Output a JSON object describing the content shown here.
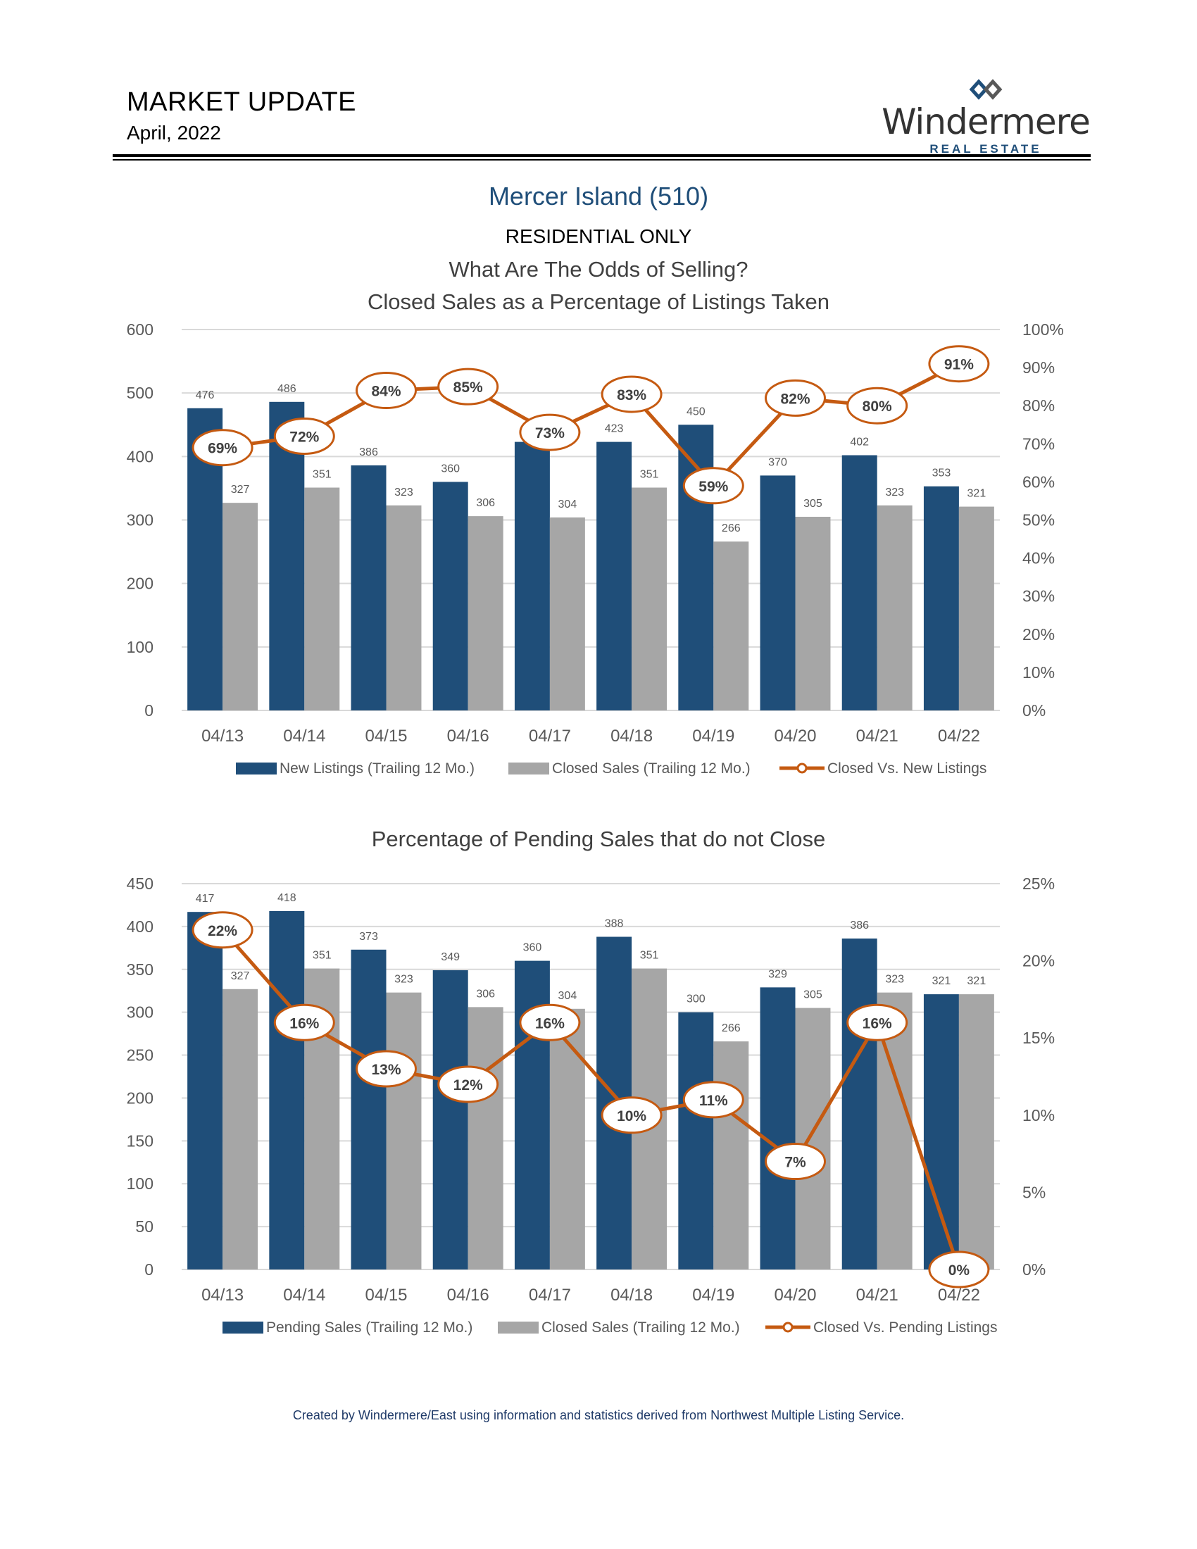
{
  "header": {
    "title": "MARKET UPDATE",
    "date": "April, 2022"
  },
  "logo": {
    "name": "Windermere",
    "sub": "REAL ESTATE"
  },
  "section": {
    "title": "Mercer Island (510)",
    "subtitle": "RESIDENTIAL ONLY"
  },
  "colors": {
    "navy": "#1f4e79",
    "gray": "#a6a6a6",
    "orange": "#c55a11",
    "grid": "#d9d9d9",
    "axis_text": "#595959"
  },
  "chart_data": [
    {
      "type": "bar",
      "title_lines": [
        "What Are The Odds of Selling?",
        "Closed Sales as a Percentage of Listings Taken"
      ],
      "categories": [
        "04/13",
        "04/14",
        "04/15",
        "04/16",
        "04/17",
        "04/18",
        "04/19",
        "04/20",
        "04/21",
        "04/22"
      ],
      "series": [
        {
          "name": "New Listings (Trailing 12 Mo.)",
          "kind": "bar",
          "color": "#1f4e79",
          "values": [
            476,
            486,
            386,
            360,
            423,
            423,
            450,
            370,
            402,
            353
          ]
        },
        {
          "name": "Closed Sales (Trailing 12 Mo.)",
          "kind": "bar",
          "color": "#a6a6a6",
          "values": [
            327,
            351,
            323,
            306,
            304,
            351,
            266,
            305,
            323,
            321
          ]
        },
        {
          "name": "Closed Vs. New Listings",
          "kind": "line",
          "axis": "right",
          "color": "#c55a11",
          "values": [
            69,
            72,
            84,
            85,
            73,
            83,
            59,
            82,
            80,
            91
          ]
        }
      ],
      "bar_value_labels": [
        [
          "476",
          "486",
          "386",
          "360",
          "",
          "423",
          "450",
          "370",
          "402",
          "353"
        ],
        [
          "327",
          "351",
          "323",
          "306",
          "304",
          "351",
          "266",
          "305",
          "323",
          "321"
        ]
      ],
      "line_labels": [
        "69%",
        "72%",
        "84%",
        "85%",
        "73%",
        "83%",
        "59%",
        "82%",
        "80%",
        "91%"
      ],
      "y_left": {
        "min": 0,
        "max": 600,
        "ticks": [
          "0",
          "100",
          "200",
          "300",
          "400",
          "500",
          "600"
        ]
      },
      "y_right": {
        "min": 0,
        "max": 100,
        "ticks": [
          "0%",
          "10%",
          "20%",
          "30%",
          "40%",
          "50%",
          "60%",
          "70%",
          "80%",
          "90%",
          "100%"
        ]
      },
      "legend_position": "bottom"
    },
    {
      "type": "bar",
      "title_lines": [
        "Percentage of Pending Sales that do not Close"
      ],
      "categories": [
        "04/13",
        "04/14",
        "04/15",
        "04/16",
        "04/17",
        "04/18",
        "04/19",
        "04/20",
        "04/21",
        "04/22"
      ],
      "series": [
        {
          "name": "Pending Sales (Trailing 12 Mo.)",
          "kind": "bar",
          "color": "#1f4e79",
          "values": [
            417,
            418,
            373,
            349,
            360,
            388,
            300,
            329,
            386,
            321
          ]
        },
        {
          "name": "Closed Sales (Trailing 12 Mo.)",
          "kind": "bar",
          "color": "#a6a6a6",
          "values": [
            327,
            351,
            323,
            306,
            304,
            351,
            266,
            305,
            323,
            321
          ]
        },
        {
          "name": "Closed Vs. Pending Listings",
          "kind": "line",
          "axis": "right",
          "color": "#c55a11",
          "values": [
            22,
            16,
            13,
            12,
            16,
            10,
            11,
            7,
            16,
            0
          ]
        }
      ],
      "bar_value_labels": [
        [
          "417",
          "418",
          "373",
          "349",
          "360",
          "388",
          "300",
          "329",
          "386",
          "321"
        ],
        [
          "327",
          "351",
          "323",
          "306",
          "304",
          "351",
          "266",
          "305",
          "323",
          "321"
        ]
      ],
      "line_labels": [
        "22%",
        "16%",
        "13%",
        "12%",
        "16%",
        "10%",
        "11%",
        "7%",
        "16%",
        "0%"
      ],
      "y_left": {
        "min": 0,
        "max": 450,
        "ticks": [
          "0",
          "50",
          "100",
          "150",
          "200",
          "250",
          "300",
          "350",
          "400",
          "450"
        ]
      },
      "y_right": {
        "min": 0,
        "max": 25,
        "ticks": [
          "0%",
          "5%",
          "10%",
          "15%",
          "20%",
          "25%"
        ]
      },
      "legend_position": "bottom"
    }
  ],
  "footer": "Created by Windermere/East using information and statistics derived from Northwest Multiple Listing Service."
}
